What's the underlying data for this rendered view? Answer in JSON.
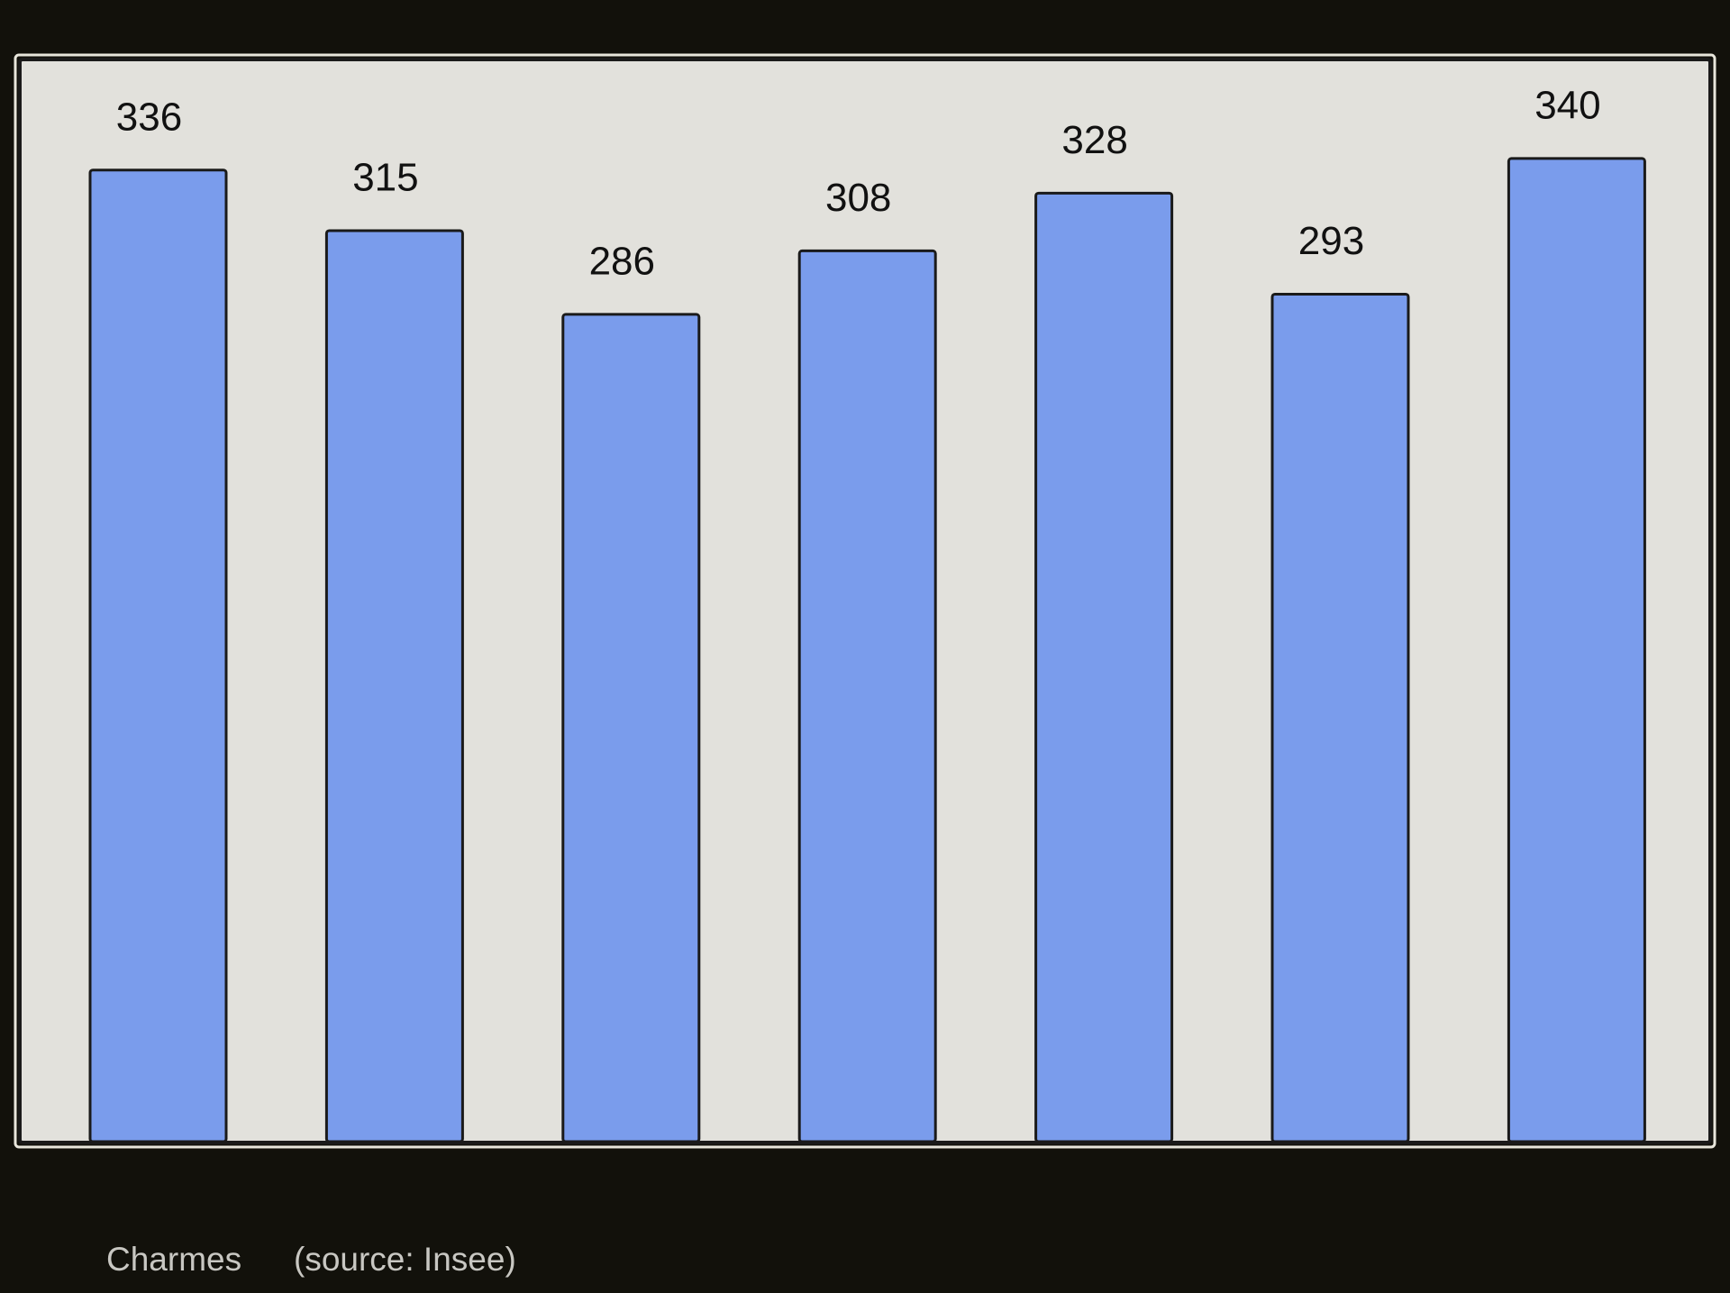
{
  "chart_data": {
    "type": "bar",
    "title": "Charmes",
    "source": "(source: Insee)",
    "categories": [
      null,
      null,
      null,
      null,
      null,
      null,
      null
    ],
    "values": [
      336,
      315,
      286,
      308,
      328,
      293,
      340
    ],
    "color": "#7a9cec",
    "ylim": [
      0,
      374
    ]
  }
}
